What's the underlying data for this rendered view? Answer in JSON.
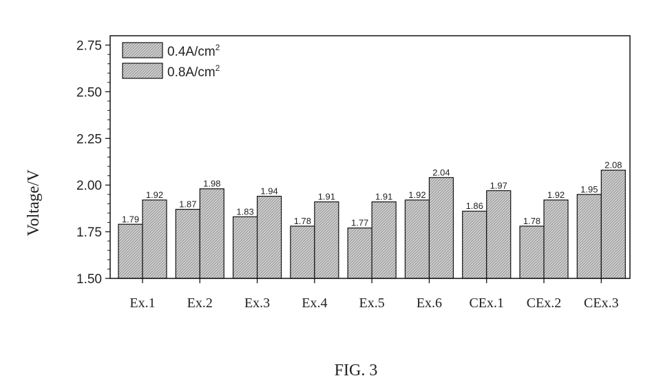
{
  "chart_data": {
    "type": "bar",
    "ylabel": "Voltage/V",
    "xlabel": "",
    "ylim": [
      1.5,
      2.8
    ],
    "yticks": [
      "1.50",
      "1.75",
      "2.00",
      "2.25",
      "2.50",
      "2.75"
    ],
    "categories": [
      "Ex.1",
      "Ex.2",
      "Ex.3",
      "Ex.4",
      "Ex.5",
      "Ex.6",
      "CEx.1",
      "CEx.2",
      "CEx.3"
    ],
    "series": [
      {
        "name": "0.4A/cm",
        "sup": "2",
        "values": [
          1.79,
          1.87,
          1.83,
          1.78,
          1.77,
          1.92,
          1.86,
          1.78,
          1.95
        ],
        "labels": [
          "1.79",
          "1.87",
          "1.83",
          "1.78",
          "1.77",
          "1.92",
          "1.86",
          "1.78",
          "1.95"
        ]
      },
      {
        "name": "0.8A/cm",
        "sup": "2",
        "values": [
          1.92,
          1.98,
          1.94,
          1.91,
          1.91,
          2.04,
          1.97,
          1.92,
          2.08
        ],
        "labels": [
          "1.92",
          "1.98",
          "1.94",
          "1.91",
          "1.91",
          "2.04",
          "1.97",
          "1.92",
          "2.08"
        ]
      }
    ],
    "legend_position": "top-left",
    "grid": false,
    "bar_style": "hatched-gray"
  },
  "figure": {
    "caption": "FIG. 3"
  }
}
